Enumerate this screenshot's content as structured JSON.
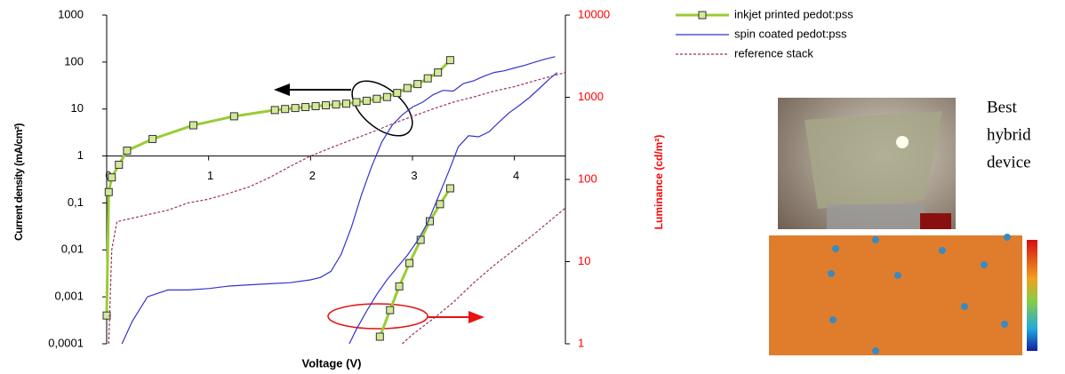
{
  "chart_data": {
    "type": "line",
    "x_label": "Voltage (V)",
    "y_label": "Current density (mA/cm²)",
    "y2_label": "Luminance (cd/m²)",
    "side_text": [
      "Best",
      "hybrid",
      "device"
    ],
    "xlim": [
      0,
      4.5
    ],
    "xticks": [
      0,
      1,
      2,
      3,
      4
    ],
    "ylim": [
      0.0001,
      1000
    ],
    "y_log": true,
    "yticks": [
      1000,
      100,
      10,
      1,
      {
        "value": 0.1,
        "label": "0,1"
      },
      {
        "value": 0.01,
        "label": "0,01"
      },
      {
        "value": 0.001,
        "label": "0,001"
      },
      {
        "value": 0.0001,
        "label": "0,0001"
      }
    ],
    "y2lim": [
      1,
      10000
    ],
    "y2_log": true,
    "y2ticks": [
      10000,
      1000,
      100,
      10,
      1
    ],
    "y2_color": "#ff0000",
    "x_axis_at": 1,
    "grid": false,
    "legend": "outside-upper-right",
    "series": [
      {
        "name": "inkjet printed pedot:pss",
        "color": "#99cc33",
        "marker": "square",
        "dash": "solid",
        "current": {
          "x": [
            0,
            0.02,
            0.05,
            0.12,
            0.2,
            0.45,
            0.85,
            1.25,
            1.65,
            1.75,
            1.85,
            1.95,
            2.05,
            2.15,
            2.25,
            2.35,
            2.45,
            2.55,
            2.65,
            2.75,
            2.85,
            2.95,
            3.05,
            3.15,
            3.25,
            3.37
          ],
          "values": [
            0.0004,
            0.17,
            0.35,
            0.65,
            1.3,
            2.3,
            4.5,
            7,
            9.5,
            10,
            10.5,
            11,
            11.5,
            12,
            12.5,
            13,
            14,
            15,
            16.5,
            18,
            22,
            28,
            34,
            45,
            60,
            110
          ]
        },
        "luminance": {
          "x": [
            2.68,
            2.78,
            2.87,
            2.97,
            3.08,
            3.17,
            3.27,
            3.37
          ],
          "values": [
            1.22,
            2.57,
            5,
            9.6,
            18.4,
            31,
            50,
            78
          ]
        }
      },
      {
        "name": "spin coated pedot:pss",
        "color": "#3333cc",
        "marker": "none",
        "dash": "solid",
        "current": {
          "x": [
            0.15,
            0.25,
            0.4,
            0.6,
            0.8,
            1.0,
            1.2,
            1.4,
            1.6,
            1.8,
            2.0,
            2.1,
            2.2,
            2.3,
            2.4,
            2.5,
            2.6,
            2.7,
            2.8,
            2.9,
            3.0,
            3.1,
            3.2,
            3.3,
            3.4,
            3.5,
            3.6,
            3.7,
            3.8,
            3.9,
            4.0,
            4.1,
            4.2,
            4.3,
            4.4
          ],
          "values": [
            0.0001,
            0.0003,
            0.001,
            0.0014,
            0.0014,
            0.0015,
            0.0017,
            0.0018,
            0.0019,
            0.002,
            0.0023,
            0.0026,
            0.0035,
            0.008,
            0.03,
            0.15,
            0.6,
            2,
            4.5,
            7.5,
            11,
            14,
            20,
            25,
            24,
            35,
            40,
            50,
            60,
            65,
            75,
            85,
            100,
            115,
            130
          ]
        },
        "luminance": {
          "x": [
            2.38,
            2.45,
            2.55,
            2.65,
            2.75,
            2.85,
            2.95,
            3.05,
            3.15,
            3.25,
            3.35,
            3.45,
            3.55,
            3.65,
            3.75,
            3.85,
            3.95,
            4.05,
            4.15,
            4.25,
            4.35,
            4.42
          ],
          "values": [
            1,
            1.5,
            2.5,
            4,
            6,
            8.5,
            12,
            18,
            30,
            60,
            120,
            250,
            340,
            330,
            380,
            500,
            650,
            800,
            1000,
            1300,
            1700,
            2000
          ]
        }
      },
      {
        "name": "reference stack",
        "color": "#993366",
        "marker": "none",
        "dash": "dotted",
        "current": {
          "x": [
            0.02,
            0.05,
            0.1,
            0.3,
            0.6,
            0.8,
            1.0,
            1.2,
            1.4,
            1.6,
            1.8,
            2.0,
            2.2,
            2.4,
            2.6,
            2.8,
            3.0,
            3.2,
            3.4,
            3.6,
            3.8,
            4.0,
            4.2,
            4.5
          ],
          "values": [
            0.0001,
            0.01,
            0.04,
            0.05,
            0.07,
            0.1,
            0.12,
            0.16,
            0.22,
            0.35,
            0.6,
            1,
            1.5,
            2.2,
            3.2,
            4.8,
            7,
            10,
            14,
            18,
            24,
            30,
            40,
            60
          ]
        },
        "luminance": {
          "x": [
            2.9,
            3.0,
            3.2,
            3.4,
            3.6,
            3.8,
            4.0,
            4.2,
            4.5
          ],
          "values": [
            1,
            1.3,
            2,
            3.2,
            5.5,
            9,
            14,
            22,
            45
          ]
        }
      }
    ]
  }
}
